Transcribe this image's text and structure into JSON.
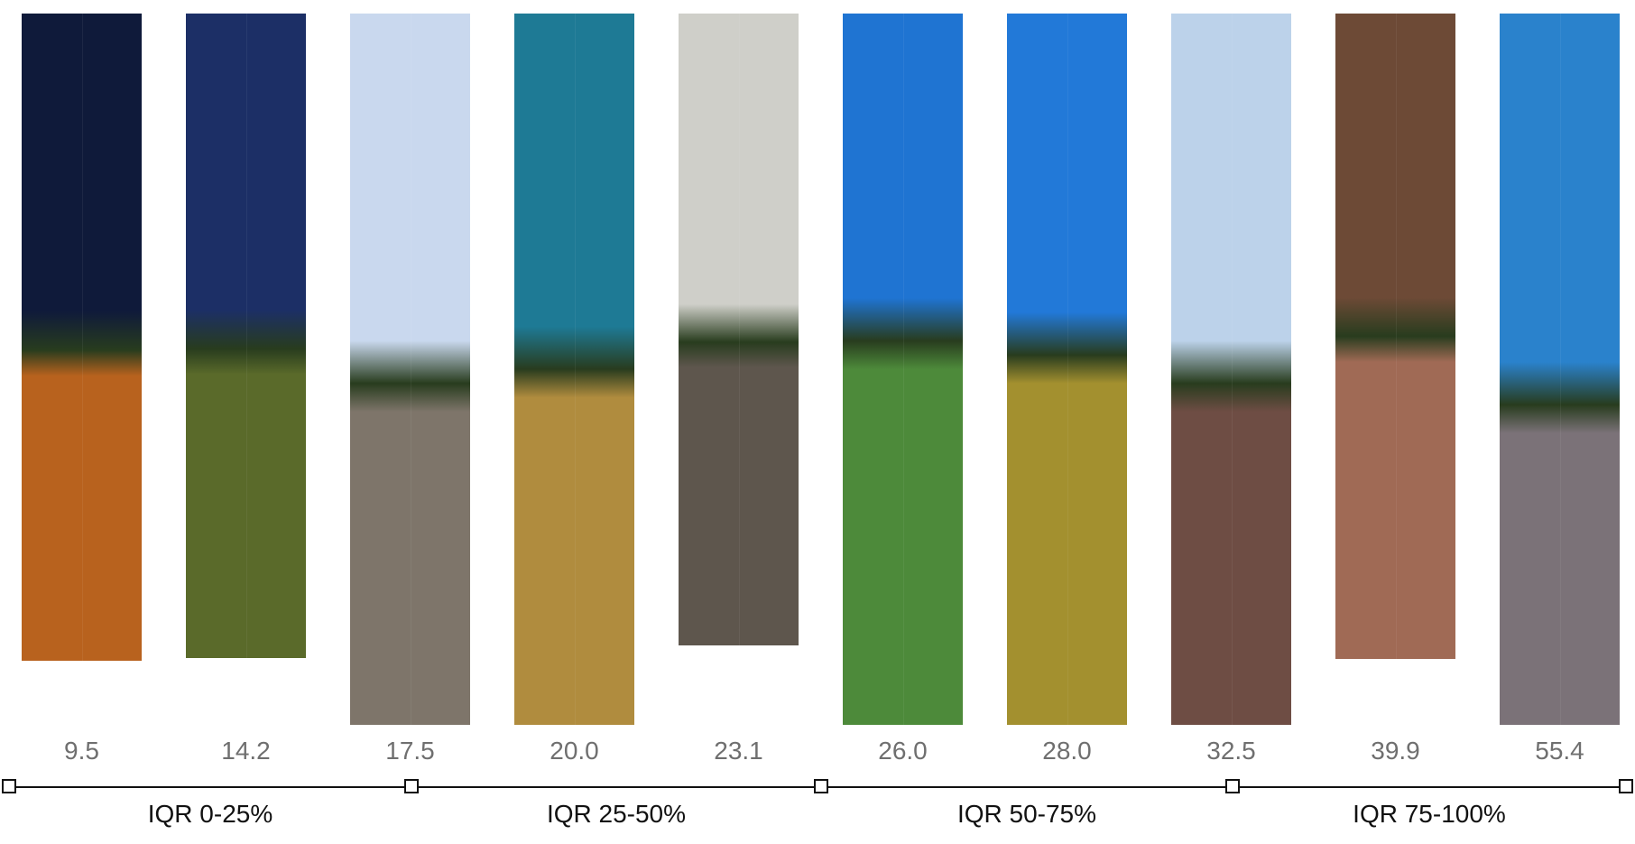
{
  "panoramas": [
    {
      "value": "9.5",
      "scene": "night street with orange lights",
      "sky": "#0f1a3a",
      "ground": "#b8621e"
    },
    {
      "value": "14.2",
      "scene": "dusk field",
      "sky": "#1c2f66",
      "ground": "#5a6a2a"
    },
    {
      "value": "17.5",
      "scene": "city tower over gravel",
      "sky": "#c9d8ee",
      "ground": "#7e756a"
    },
    {
      "value": "20.0",
      "scene": "teal sky over dry grass",
      "sky": "#1e7a95",
      "ground": "#b08c3e"
    },
    {
      "value": "23.1",
      "scene": "overcast bare field",
      "sky": "#cfcfc9",
      "ground": "#5e564d"
    },
    {
      "value": "26.0",
      "scene": "blue sky over green plants",
      "sky": "#1f74d2",
      "ground": "#4d8a3a"
    },
    {
      "value": "28.0",
      "scene": "blue sky over yellow plants",
      "sky": "#2279d8",
      "ground": "#a3902f"
    },
    {
      "value": "32.5",
      "scene": "brick buildings and plaza",
      "sky": "#bcd2ea",
      "ground": "#6e4d44"
    },
    {
      "value": "39.9",
      "scene": "brick underpass",
      "sky": "#6d4a36",
      "ground": "#a06a55"
    },
    {
      "value": "55.4",
      "scene": "old brick buildings street",
      "sky": "#2a82cc",
      "ground": "#7b7278"
    }
  ],
  "quartiles": [
    {
      "label": "IQR 0-25%"
    },
    {
      "label": "IQR 25-50%"
    },
    {
      "label": "IQR 50-75%"
    },
    {
      "label": "IQR 75-100%"
    }
  ]
}
